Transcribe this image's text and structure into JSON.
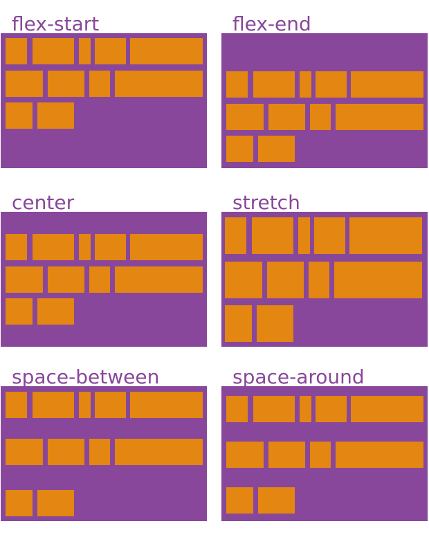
{
  "colors": {
    "container": "#88479a",
    "item": "#e38612",
    "label": "#88479a"
  },
  "panels": [
    {
      "label": "flex-start"
    },
    {
      "label": "flex-end"
    },
    {
      "label": "center"
    },
    {
      "label": "stretch"
    },
    {
      "label": "space-between"
    },
    {
      "label": "space-around"
    }
  ]
}
